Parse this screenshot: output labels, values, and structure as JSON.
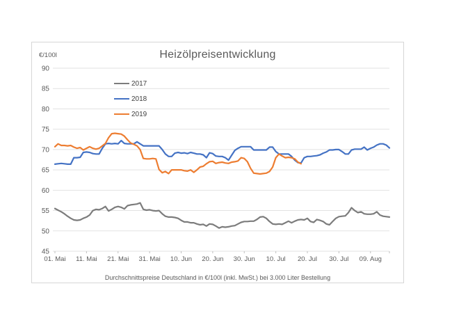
{
  "chart_data": {
    "type": "line",
    "title": "Heizölpreisentwicklung",
    "ylabel": "€/100l",
    "caption": "Durchschnittspreise Deutschland in €/100l (inkl. MwSt.) bei 3.000 Liter Bestellung",
    "ylim": [
      45,
      90
    ],
    "yticks": [
      90,
      85,
      80,
      75,
      70,
      65,
      60,
      55,
      50,
      45
    ],
    "xticklabels": [
      "01. Mai",
      "11. Mai",
      "21. Mai",
      "31. Mai",
      "10. Jun",
      "20. Jun",
      "30. Jun",
      "10. Jul",
      "20. Jul",
      "30. Jul",
      "09. Aug"
    ],
    "xtick_days": [
      0,
      10,
      20,
      30,
      40,
      50,
      60,
      70,
      80,
      90,
      100
    ],
    "x_total_days": 106,
    "x_unit": "daily values, day 0 = 01. Mai",
    "grid": "horizontal",
    "legend_position": "inside-upper-left",
    "axis_text_color": "#595959",
    "gridline_color": "#e2e2e2",
    "tick_color": "#bfbfbf",
    "series": [
      {
        "name": "2017",
        "color": "#7c7c7c",
        "start_day": 0,
        "values": [
          55.5,
          55.1,
          54.7,
          54.2,
          53.6,
          53.1,
          52.7,
          52.6,
          52.7,
          53.1,
          53.4,
          53.9,
          55.0,
          55.3,
          55.2,
          55.5,
          56.0,
          54.9,
          55.3,
          55.8,
          56.0,
          55.8,
          55.4,
          56.2,
          56.4,
          56.5,
          56.6,
          56.9,
          55.3,
          55.1,
          55.2,
          55.0,
          54.9,
          55.0,
          54.2,
          53.6,
          53.4,
          53.4,
          53.3,
          53.1,
          52.6,
          52.2,
          52.2,
          52.0,
          52.0,
          51.7,
          51.5,
          51.6,
          51.2,
          51.7,
          51.6,
          51.2,
          50.7,
          51.0,
          50.9,
          51.0,
          51.2,
          51.3,
          51.7,
          52.1,
          52.3,
          52.3,
          52.4,
          52.4,
          52.8,
          53.4,
          53.5,
          53.1,
          52.3,
          51.7,
          51.6,
          51.7,
          51.6,
          52.0,
          52.4,
          52.0,
          52.4,
          52.7,
          52.8,
          52.7,
          53.1,
          52.3,
          52.1,
          52.8,
          52.6,
          52.3,
          51.7,
          51.5,
          52.3,
          53.1,
          53.5,
          53.6,
          53.7,
          54.5,
          55.7,
          55.0,
          54.5,
          54.7,
          54.2,
          54.1,
          54.1,
          54.2,
          54.7,
          53.9,
          53.6,
          53.5,
          53.4
        ]
      },
      {
        "name": "2018",
        "color": "#4472c4",
        "start_day": 0,
        "values": [
          66.4,
          66.5,
          66.6,
          66.5,
          66.4,
          66.4,
          68.0,
          68.0,
          68.1,
          69.3,
          69.4,
          69.3,
          69.0,
          68.9,
          68.9,
          70.3,
          71.4,
          71.5,
          71.4,
          71.5,
          71.4,
          72.2,
          71.5,
          71.4,
          71.4,
          71.4,
          71.9,
          71.4,
          70.9,
          70.9,
          70.9,
          70.9,
          70.9,
          70.9,
          70.0,
          68.9,
          68.3,
          68.3,
          69.1,
          69.3,
          69.1,
          69.2,
          69.0,
          69.3,
          69.1,
          68.9,
          68.9,
          68.7,
          68.0,
          69.2,
          69.0,
          68.4,
          68.3,
          68.3,
          68.0,
          67.4,
          68.6,
          69.8,
          70.3,
          70.7,
          70.7,
          70.7,
          70.7,
          69.9,
          69.9,
          69.9,
          69.9,
          69.9,
          70.6,
          70.6,
          69.5,
          68.9,
          68.9,
          68.9,
          68.9,
          68.3,
          67.4,
          66.8,
          66.7,
          68.0,
          68.3,
          68.3,
          68.4,
          68.5,
          68.7,
          69.1,
          69.4,
          69.9,
          69.9,
          70.0,
          70.0,
          69.5,
          68.9,
          68.9,
          69.9,
          70.1,
          70.1,
          70.1,
          70.6,
          69.9,
          70.3,
          70.6,
          71.1,
          71.4,
          71.4,
          71.1,
          70.4
        ]
      },
      {
        "name": "2019",
        "color": "#ed7d31",
        "start_day": 0,
        "values": [
          70.7,
          71.4,
          71.0,
          71.0,
          70.9,
          71.0,
          70.6,
          70.3,
          70.5,
          69.9,
          70.3,
          70.7,
          70.3,
          70.1,
          70.3,
          70.9,
          71.5,
          72.9,
          73.9,
          74.0,
          73.9,
          73.8,
          73.3,
          72.4,
          71.6,
          71.3,
          70.9,
          70.0,
          67.8,
          67.7,
          67.7,
          67.8,
          67.7,
          65.1,
          64.3,
          64.6,
          64.1,
          65.0,
          65.0,
          65.0,
          65.0,
          64.8,
          64.7,
          65.0,
          64.4,
          65.0,
          65.7,
          65.9,
          66.5,
          67.0,
          67.1,
          66.6,
          66.8,
          66.9,
          66.7,
          66.6,
          66.9,
          67.0,
          67.2,
          68.0,
          67.8,
          67.0,
          65.4,
          64.2,
          64.1,
          64.0,
          64.1,
          64.2,
          64.6,
          65.7,
          68.0,
          68.9,
          68.4,
          68.0,
          68.1,
          68.0,
          67.7,
          66.9,
          66.5
        ]
      }
    ]
  }
}
